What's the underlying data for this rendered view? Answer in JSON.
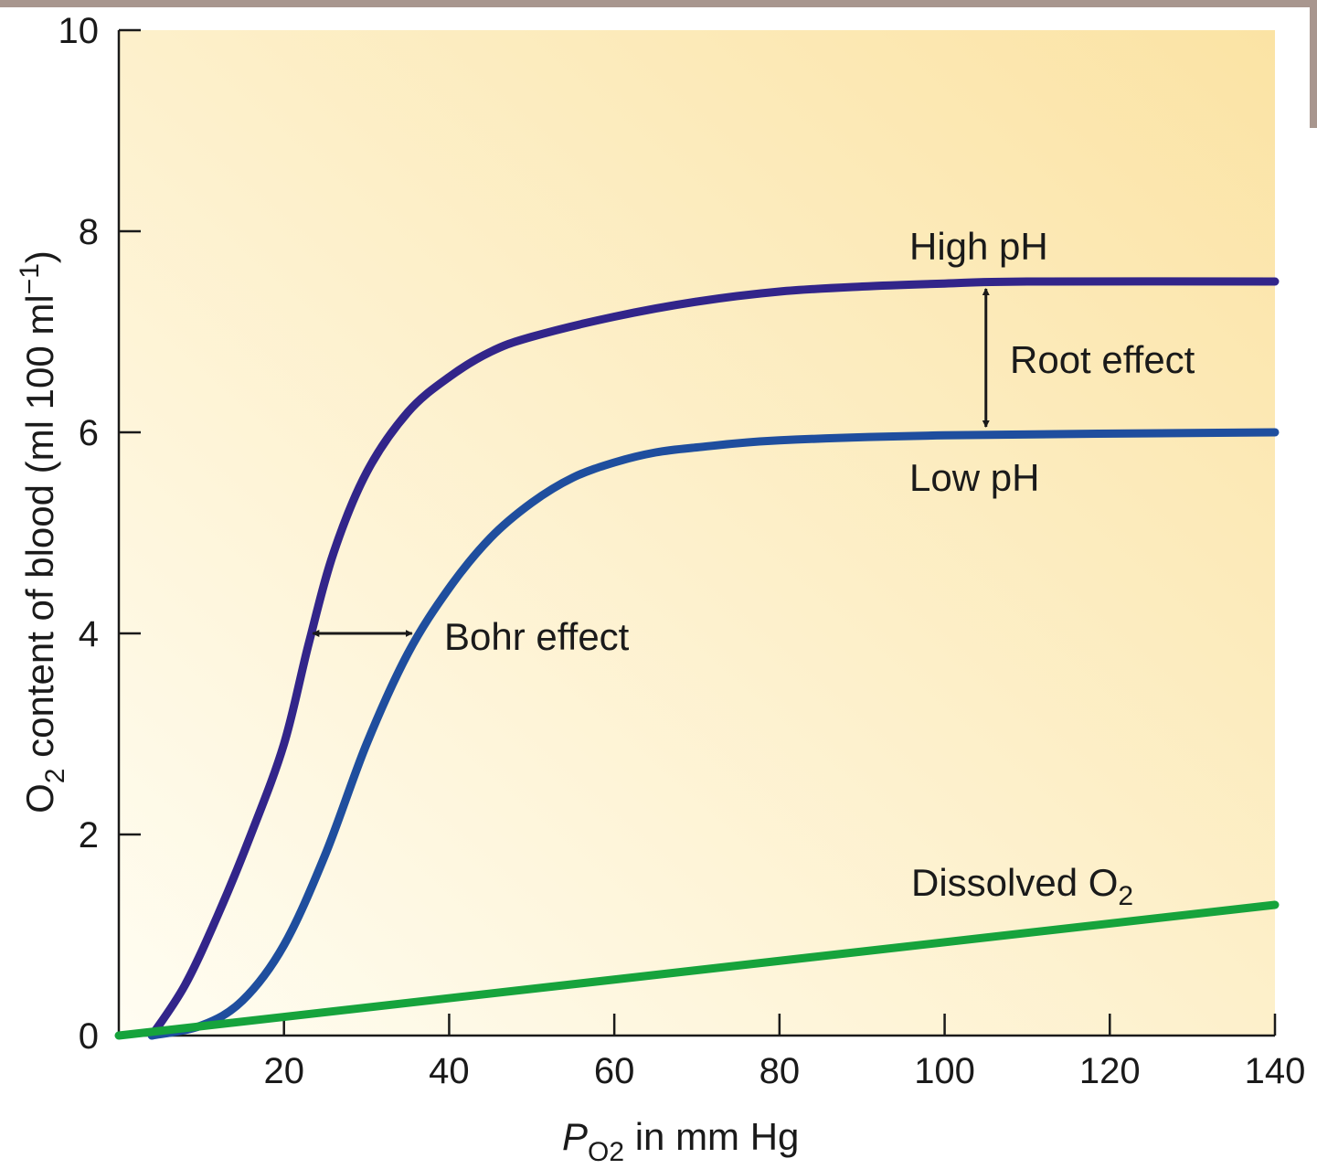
{
  "colors": {
    "frame": "#a8968e",
    "bg_light": "#fffdf2",
    "bg_dark": "#fbe3a4",
    "high_ph": "#32258a",
    "low_ph": "#1f4e9e",
    "dissolved": "#16a33c",
    "axis": "#1a1a1a"
  },
  "chart_data": {
    "type": "line",
    "x_axis": {
      "label_prefix": "P",
      "label_sub": "O2",
      "label_suffix": " in mm Hg",
      "range": [
        0,
        140
      ],
      "ticks": [
        20,
        40,
        60,
        80,
        100,
        120,
        140
      ],
      "tick_labels": [
        "20",
        "40",
        "60",
        "80",
        "100",
        "120",
        "140"
      ]
    },
    "y_axis": {
      "label_prefix": "O",
      "label_sub": "2",
      "label_mid": " content of blood (ml 100 ml",
      "label_sup": "−1",
      "label_suffix": ")",
      "range": [
        0,
        10
      ],
      "ticks": [
        0,
        2,
        4,
        6,
        8,
        10
      ],
      "tick_labels": [
        "0",
        "2",
        "4",
        "6",
        "8",
        "10"
      ]
    },
    "grid": false,
    "series": [
      {
        "name": "High pH",
        "color_key": "high_ph",
        "points": [
          [
            4,
            0
          ],
          [
            8,
            0.5
          ],
          [
            12,
            1.2
          ],
          [
            16,
            2.0
          ],
          [
            20,
            2.9
          ],
          [
            23,
            3.9
          ],
          [
            26,
            4.8
          ],
          [
            30,
            5.6
          ],
          [
            35,
            6.2
          ],
          [
            40,
            6.55
          ],
          [
            45,
            6.8
          ],
          [
            50,
            6.95
          ],
          [
            60,
            7.15
          ],
          [
            70,
            7.3
          ],
          [
            80,
            7.4
          ],
          [
            90,
            7.45
          ],
          [
            100,
            7.48
          ],
          [
            110,
            7.5
          ],
          [
            140,
            7.5
          ]
        ]
      },
      {
        "name": "Low pH",
        "color_key": "low_ph",
        "points": [
          [
            4,
            0
          ],
          [
            10,
            0.1
          ],
          [
            15,
            0.35
          ],
          [
            20,
            0.9
          ],
          [
            25,
            1.8
          ],
          [
            30,
            2.9
          ],
          [
            35,
            3.8
          ],
          [
            40,
            4.45
          ],
          [
            45,
            4.95
          ],
          [
            50,
            5.3
          ],
          [
            55,
            5.55
          ],
          [
            60,
            5.7
          ],
          [
            65,
            5.8
          ],
          [
            70,
            5.85
          ],
          [
            80,
            5.92
          ],
          [
            100,
            5.97
          ],
          [
            140,
            6.0
          ]
        ]
      },
      {
        "name": "Dissolved O2",
        "color_key": "dissolved",
        "points": [
          [
            0,
            0
          ],
          [
            140,
            1.3
          ]
        ]
      }
    ],
    "annotations": {
      "high_ph": "High pH",
      "low_ph": "Low pH",
      "root_effect": "Root effect",
      "bohr_effect": "Bohr effect",
      "dissolved_prefix": "Dissolved O",
      "dissolved_sub": "2"
    },
    "root_arrow": {
      "x": 105,
      "y_from": 6.0,
      "y_to": 7.5
    },
    "bohr_arrow": {
      "y": 4.0,
      "x_from": 23.5,
      "x_to": 35.5
    }
  }
}
